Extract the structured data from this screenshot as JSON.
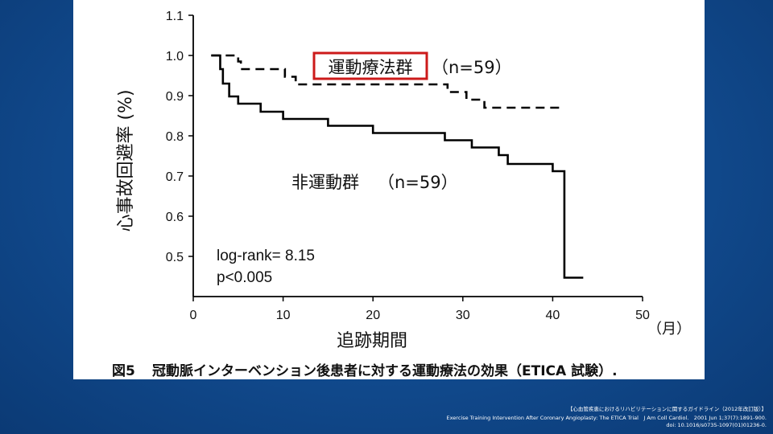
{
  "chart_data": {
    "type": "line",
    "title": "",
    "xlabel": "追跡期間",
    "xunit": "（月）",
    "ylabel": "心事故回避率 (%)",
    "xlim": [
      0,
      50
    ],
    "ylim": [
      0.4,
      1.1
    ],
    "xticks": [
      0,
      10,
      20,
      30,
      40,
      50
    ],
    "yticks": [
      0.5,
      0.6,
      0.7,
      0.8,
      0.9,
      1.0,
      1.1
    ],
    "series": [
      {
        "name": "運動療法群",
        "n_label": "（n=59）",
        "style": "dashed",
        "x": [
          2,
          3,
          4,
          5,
          5.3,
          10,
          10.2,
          11,
          11.4,
          28,
          28.3,
          30,
          30.4,
          32,
          32.4,
          41.3
        ],
        "y": [
          1.0,
          1.0,
          1.0,
          0.985,
          0.966,
          0.966,
          0.947,
          0.947,
          0.928,
          0.928,
          0.909,
          0.909,
          0.89,
          0.89,
          0.87,
          0.87
        ]
      },
      {
        "name": "非運動群",
        "n_label": "（n=59）",
        "style": "solid",
        "x": [
          2,
          3,
          3.3,
          4,
          5,
          7.5,
          10,
          15,
          20,
          28,
          31,
          34,
          35,
          40,
          41.3
        ],
        "y": [
          1.0,
          0.966,
          0.93,
          0.898,
          0.88,
          0.86,
          0.842,
          0.825,
          0.807,
          0.789,
          0.771,
          0.752,
          0.73,
          0.712,
          0.69
        ]
      }
    ],
    "annotations": {
      "logrank": "log-rank= 8.15",
      "pvalue": "p<0.005"
    },
    "highlight_color": "#cc1a1a"
  },
  "caption": {
    "figure": "図5",
    "text": "冠動脈インターベンション後患者に対する運動療法の効果（ETICA 試験）."
  },
  "reference": {
    "line1": "【心血管疾患におけるリハビリテーションに関するガイドライン（2012年改訂版）】",
    "line2": "Exercise Training Intervention After Coronary Angioplasty: The ETICA Trial　J Am Coll Cardiol.　2001 Jun 1;37(7):1891-900.",
    "line3": "doi: 10.1016/s0735-1097(01)01236-0."
  },
  "colors": {
    "background": "#124d92",
    "card": "#ffffff",
    "ink": "#000000"
  }
}
